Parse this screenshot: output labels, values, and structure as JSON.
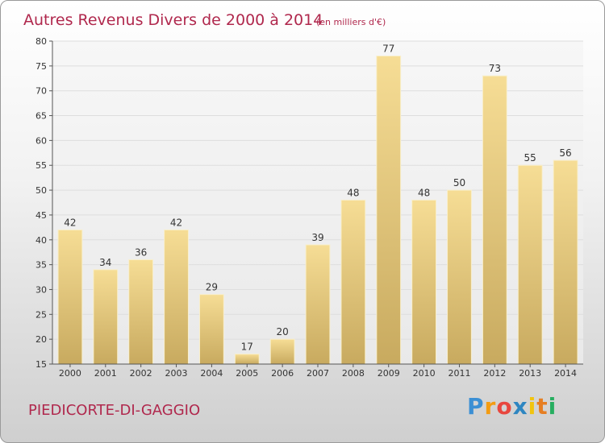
{
  "title": {
    "main": "Autres Revenus Divers de 2000 à 2014",
    "sub": "(en milliers d'€)"
  },
  "commune": "PIEDICORTE-DI-GAGGIO",
  "logo": {
    "letters": [
      "P",
      "r",
      "o",
      "x",
      "i",
      "t",
      "i"
    ],
    "colors": [
      "#3b8fd4",
      "#f39c12",
      "#e8473f",
      "#2e86c1",
      "#f1c40f",
      "#e67e22",
      "#27ae60"
    ]
  },
  "chart_data": {
    "type": "bar",
    "categories": [
      "2000",
      "2001",
      "2002",
      "2003",
      "2004",
      "2005",
      "2006",
      "2007",
      "2008",
      "2009",
      "2010",
      "2011",
      "2012",
      "2013",
      "2014"
    ],
    "values": [
      42,
      34,
      36,
      42,
      29,
      17,
      20,
      39,
      48,
      77,
      48,
      50,
      73,
      55,
      56
    ],
    "value_labels": [
      "42",
      "34",
      "36",
      "42",
      "29",
      "17",
      "20",
      "39",
      "48",
      "77",
      "48",
      "50",
      "73",
      "55",
      "56"
    ],
    "ylim": [
      15,
      80
    ],
    "yticks": [
      15,
      20,
      25,
      30,
      35,
      40,
      45,
      50,
      55,
      60,
      65,
      70,
      75,
      80
    ],
    "grid": true,
    "bar_color": "#e8cf85",
    "grid_color": "#dedede"
  }
}
